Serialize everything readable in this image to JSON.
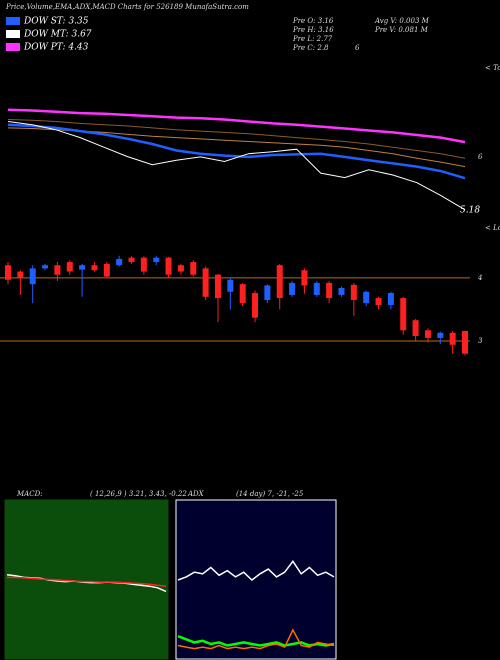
{
  "header": {
    "title": "Price,Volume,EMA,ADX,MACD Charts for 526189 MunafaSutra.com",
    "legend": [
      {
        "label": "DOW ST: 3.35",
        "color": "#1f5fff"
      },
      {
        "label": "DOW MT: 3.67",
        "color": "#ffffff"
      },
      {
        "label": "DOW PT: 4.43",
        "color": "#ff33ff"
      }
    ],
    "prev": [
      "Pre  O: 3.16",
      "Pre  H: 3.16",
      "Pre  L: 2.77",
      "Pre  C: 2.8"
    ],
    "prev_extra": "6",
    "volume": [
      "Avg  V: 0.003 M",
      "Pre   V: 0.081 M"
    ]
  },
  "chart_data": [
    {
      "type": "line",
      "ylim": [
        5.1,
        7.27
      ],
      "yticks": [
        6
      ],
      "annotation": "5.18",
      "note": "< Tope",
      "series": [
        {
          "color": "#ff33ff",
          "values": [
            6.73,
            6.72,
            6.7,
            6.68,
            6.67,
            6.65,
            6.63,
            6.61,
            6.6,
            6.58,
            6.55,
            6.52,
            6.5,
            6.47,
            6.44,
            6.41,
            6.38,
            6.34,
            6.3,
            6.23
          ]
        },
        {
          "color": "#8b5a2b",
          "values": [
            6.58,
            6.57,
            6.55,
            6.52,
            6.5,
            6.48,
            6.45,
            6.42,
            6.4,
            6.38,
            6.36,
            6.33,
            6.3,
            6.27,
            6.24,
            6.2,
            6.15,
            6.1,
            6.05,
            5.98
          ]
        },
        {
          "color": "#c08040",
          "values": [
            6.45,
            6.44,
            6.42,
            6.4,
            6.38,
            6.35,
            6.32,
            6.3,
            6.28,
            6.26,
            6.24,
            6.22,
            6.2,
            6.18,
            6.15,
            6.1,
            6.05,
            5.98,
            5.92,
            5.85
          ]
        },
        {
          "color": "#1f5fff",
          "values": [
            6.5,
            6.48,
            6.45,
            6.4,
            6.35,
            6.28,
            6.2,
            6.1,
            6.05,
            6.02,
            6.0,
            6.03,
            6.04,
            6.05,
            6.0,
            5.95,
            5.9,
            5.85,
            5.78,
            5.67
          ]
        },
        {
          "color": "#ffffff",
          "values": [
            6.55,
            6.5,
            6.42,
            6.3,
            6.15,
            6.0,
            5.88,
            5.95,
            6.0,
            5.93,
            6.05,
            6.08,
            6.12,
            5.75,
            5.68,
            5.8,
            5.72,
            5.6,
            5.4,
            5.18
          ]
        }
      ]
    },
    {
      "type": "candlestick",
      "ylim": [
        2.7,
        4.52
      ],
      "yticks": [
        3,
        4
      ],
      "note": "< Lowe",
      "up_color": "#1f5fff",
      "down_color": "#ff2020",
      "open": [
        4.2,
        4.1,
        3.9,
        4.15,
        4.2,
        4.25,
        4.13,
        4.2,
        4.22,
        4.2,
        4.32,
        4.32,
        4.25,
        4.32,
        4.2,
        4.25,
        4.15,
        4.05,
        3.78,
        3.9,
        3.76,
        3.65,
        4.2,
        3.73,
        4.12,
        3.73,
        3.92,
        3.73,
        3.89,
        3.6,
        3.68,
        3.57,
        3.68,
        3.33,
        3.17,
        3.05,
        3.13,
        3.16
      ],
      "close": [
        3.97,
        4.0,
        4.15,
        4.2,
        4.05,
        4.1,
        4.2,
        4.12,
        4.02,
        4.3,
        4.25,
        4.1,
        4.32,
        4.05,
        4.1,
        4.05,
        3.7,
        3.68,
        3.97,
        3.6,
        3.37,
        3.88,
        3.68,
        3.92,
        3.88,
        3.92,
        3.68,
        3.84,
        3.65,
        3.78,
        3.57,
        3.76,
        3.17,
        3.08,
        3.05,
        3.13,
        2.94,
        2.8
      ],
      "high": [
        4.25,
        4.12,
        4.2,
        4.22,
        4.25,
        4.28,
        4.22,
        4.25,
        4.25,
        4.35,
        4.34,
        4.34,
        4.35,
        4.33,
        4.22,
        4.28,
        4.18,
        4.06,
        4.0,
        3.92,
        3.8,
        3.9,
        4.22,
        3.95,
        4.15,
        3.95,
        3.95,
        3.86,
        3.92,
        3.8,
        3.7,
        3.78,
        3.7,
        3.35,
        3.2,
        3.15,
        3.16,
        3.16
      ],
      "low": [
        3.9,
        3.73,
        3.6,
        4.12,
        3.95,
        4.05,
        3.7,
        4.1,
        4.0,
        4.18,
        4.22,
        4.05,
        4.2,
        4.0,
        4.05,
        4.02,
        3.65,
        3.3,
        3.5,
        3.55,
        3.3,
        3.6,
        3.5,
        3.7,
        3.75,
        3.7,
        3.6,
        3.7,
        3.4,
        3.55,
        3.5,
        3.5,
        3.1,
        3.0,
        2.98,
        2.95,
        2.8,
        2.77
      ]
    },
    {
      "type": "macd",
      "title": "MACD:",
      "subtitle": "( 12,26,9 ) 3.21, 3.43, -0.22",
      "ylim": [
        -1.5,
        1.5
      ],
      "series": [
        {
          "color": "#ffffff",
          "values": [
            0.1,
            0.08,
            0.05,
            0.04,
            0.03,
            0.0,
            -0.02,
            -0.03,
            -0.02,
            -0.04,
            -0.05,
            -0.05,
            -0.04,
            -0.05,
            -0.06,
            -0.08,
            -0.1,
            -0.12,
            -0.15,
            -0.22
          ]
        },
        {
          "color": "#ff2020",
          "values": [
            0.05,
            0.05,
            0.04,
            0.03,
            0.02,
            0.01,
            0.0,
            -0.01,
            -0.02,
            -0.03,
            -0.03,
            -0.04,
            -0.04,
            -0.04,
            -0.05,
            -0.06,
            -0.07,
            -0.08,
            -0.1,
            -0.12
          ]
        }
      ]
    },
    {
      "type": "adx",
      "title": "ADX",
      "subtitle": "(14 day) 7, -21, -25",
      "ylim": [
        0,
        100
      ],
      "series": [
        {
          "color": "#ffffff",
          "values": [
            50,
            52,
            55,
            54,
            58,
            53,
            56,
            52,
            55,
            50,
            54,
            57,
            52,
            55,
            62,
            54,
            58,
            53,
            55,
            52
          ]
        },
        {
          "color": "#00ff00",
          "values": [
            14,
            12,
            10,
            11,
            9,
            10,
            8,
            9,
            10,
            9,
            8,
            9,
            10,
            8,
            9,
            10,
            8,
            9,
            8,
            9
          ]
        },
        {
          "color": "#ff6a00",
          "values": [
            8,
            7,
            6,
            7,
            6,
            8,
            6,
            7,
            6,
            7,
            6,
            8,
            9,
            7,
            18,
            8,
            7,
            10,
            9,
            8
          ]
        }
      ]
    }
  ]
}
